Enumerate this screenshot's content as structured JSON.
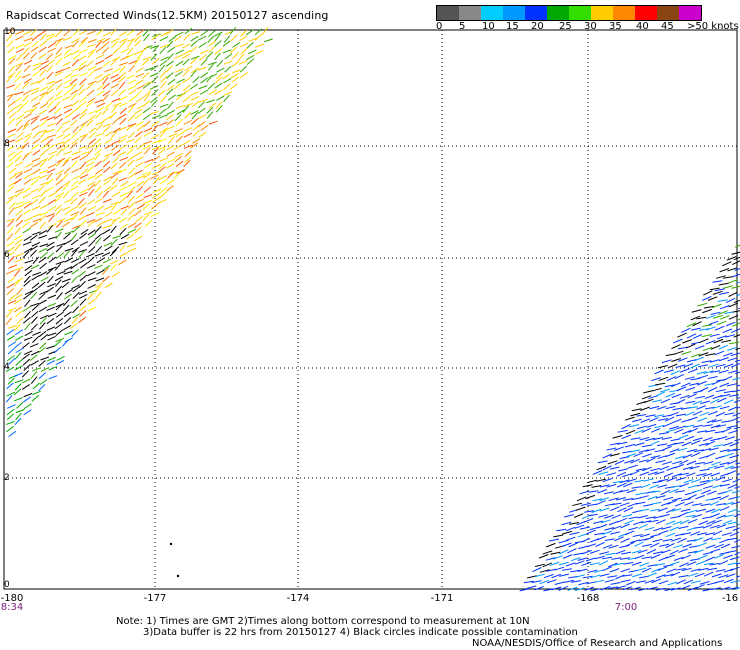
{
  "title": "Rapidscat Corrected Winds(12.5KM) 20150127 ascending",
  "legend": {
    "colors": [
      "#555555",
      "#888888",
      "#00ccff",
      "#0099ff",
      "#0033ff",
      "#00aa00",
      "#33dd00",
      "#ffee00",
      "#ffcc00",
      "#ff8800",
      "#ff5500",
      "#ff0000",
      "#cc0000",
      "#8b4513",
      "#c8a078",
      "#ff00ff",
      "#cc00cc",
      "#9900cc",
      "#660099"
    ],
    "labels": [
      "0",
      "5",
      "10",
      "15",
      "20",
      "25",
      "30",
      "35",
      "40",
      "45",
      ">50 knots"
    ]
  },
  "axes": {
    "x_ticks": [
      "-180",
      "-177",
      "-174",
      "-171",
      "-168",
      "-16"
    ],
    "y_ticks": [
      "10",
      "8",
      "6",
      "4",
      "2",
      "0"
    ]
  },
  "pass_times": [
    "8:34",
    "7:00"
  ],
  "notes": {
    "line1": "Note: 1) Times are GMT 2)Times along bottom correspond to measurement at 10N",
    "line2": "3)Data buffer is 22 hrs from 20150127 4) Black circles indicate possible contamination",
    "credit": "NOAA/NESDIS/Office of Research and Applications"
  }
}
